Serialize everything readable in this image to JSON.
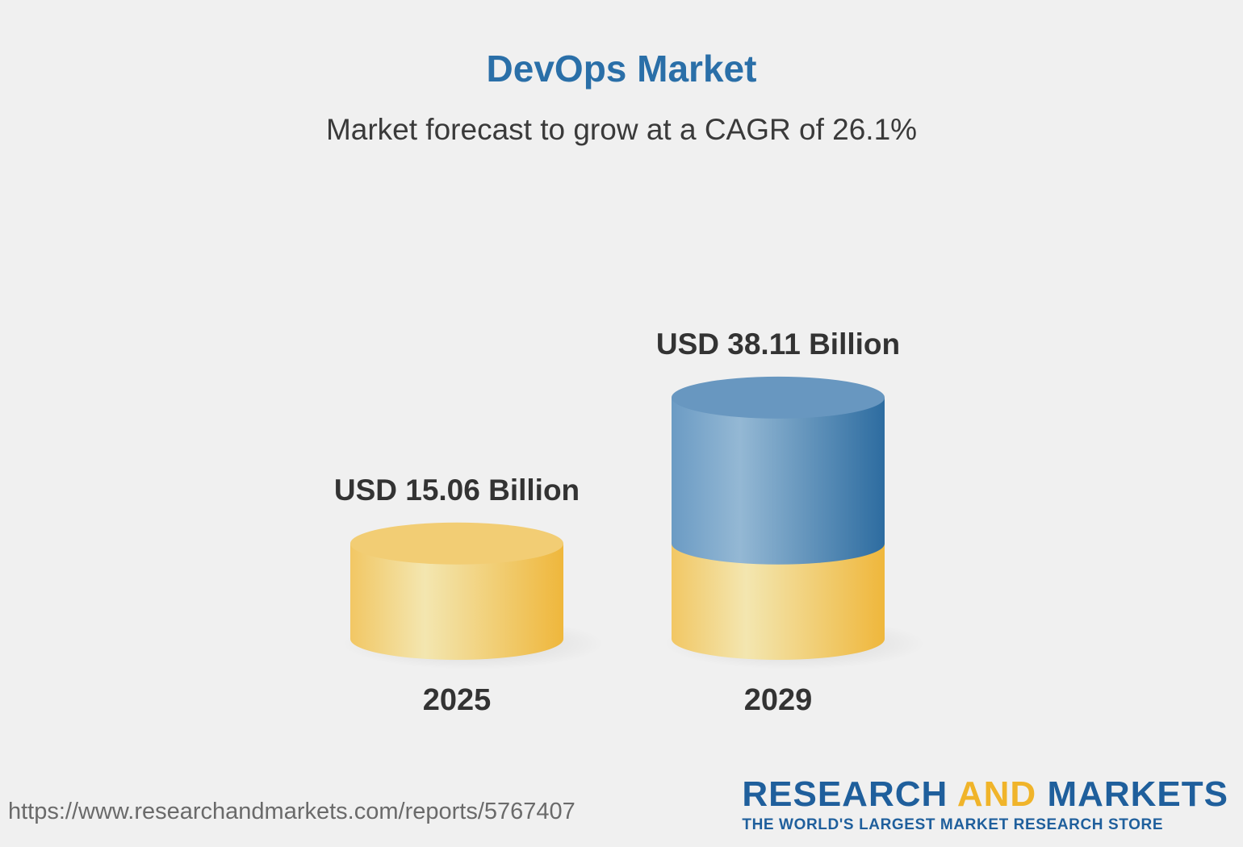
{
  "header": {
    "title": "DevOps Market",
    "subtitle": "Market forecast to grow at a CAGR of 26.1%"
  },
  "chart_data": {
    "type": "bar",
    "title": "DevOps Market",
    "subtitle": "Market forecast to grow at a CAGR of 26.1%",
    "categories": [
      "2025",
      "2029"
    ],
    "values": [
      15.06,
      38.11
    ],
    "value_labels": [
      "USD 15.06 Billion",
      "USD 38.11 Billion"
    ],
    "unit": "USD Billion",
    "cagr_percent": 26.1,
    "grid": false,
    "legend": "none",
    "colors": {
      "base": "#f2c65a",
      "base_light": "#f3e6b0",
      "growth": "#5e93c0",
      "growth_light": "#94b8d4"
    }
  },
  "footer": {
    "source_url": "https://www.researchandmarkets.com/reports/5767407",
    "brand_research": "RESEARCH",
    "brand_and": "AND",
    "brand_markets": "MARKETS",
    "brand_tagline": "THE WORLD'S LARGEST MARKET RESEARCH STORE"
  }
}
